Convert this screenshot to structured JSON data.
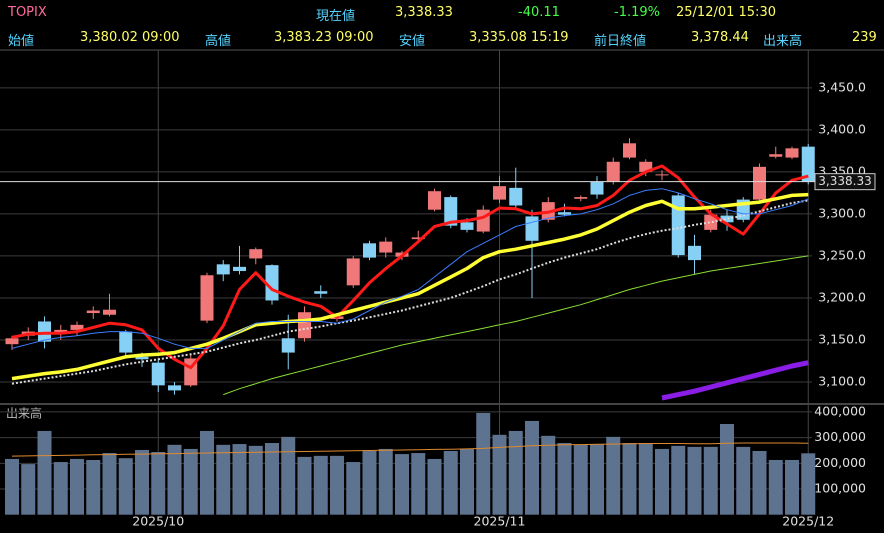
{
  "header": {
    "name": "TOPIX",
    "price_label": "現在値",
    "price": "3,338.33",
    "change": "-40.11",
    "change_pct": "-1.19%",
    "datetime": "25/12/01 15:30",
    "open_label": "始値",
    "open": "3,380.02 09:00",
    "high_label": "高値",
    "high": "3,383.23 09:00",
    "low_label": "安値",
    "low": "3,335.08 15:19",
    "prev_close_label": "前日終値",
    "prev_close": "3,378.44",
    "volume_label": "出来高",
    "volume": "239"
  },
  "chart_data": [
    {
      "type": "candlestick",
      "up_color": "#f07878",
      "down_color": "#86d0f5",
      "open": [
        3145,
        3155,
        3172,
        3157,
        3162,
        3182,
        3180,
        3160,
        3130,
        3123,
        3096,
        3096,
        3173,
        3240,
        3237,
        3247,
        3239,
        3152,
        3152,
        3208,
        3175,
        3215,
        3265,
        3254,
        3249,
        3270,
        3305,
        3320,
        3290,
        3279,
        3317,
        3331,
        3297,
        3293,
        3302,
        3318,
        3338,
        3338,
        3367,
        3350,
        3346,
        3322,
        3262,
        3281,
        3298,
        3317,
        3317,
        3368,
        3367,
        3380.02
      ],
      "high": [
        3155,
        3165,
        3178,
        3168,
        3172,
        3190,
        3205,
        3162,
        3135,
        3127,
        3100,
        3132,
        3230,
        3245,
        3262,
        3260,
        3240,
        3180,
        3190,
        3215,
        3180,
        3250,
        3268,
        3272,
        3256,
        3280,
        3330,
        3322,
        3295,
        3310,
        3345,
        3355,
        3305,
        3320,
        3312,
        3322,
        3345,
        3367,
        3390,
        3365,
        3352,
        3325,
        3275,
        3305,
        3305,
        3320,
        3360,
        3380,
        3380,
        3383.23
      ],
      "low": [
        3138,
        3150,
        3140,
        3150,
        3155,
        3175,
        3178,
        3130,
        3118,
        3088,
        3085,
        3094,
        3170,
        3220,
        3228,
        3240,
        3192,
        3115,
        3148,
        3200,
        3172,
        3212,
        3245,
        3248,
        3245,
        3265,
        3303,
        3283,
        3278,
        3277,
        3313,
        3305,
        3200,
        3290,
        3297,
        3315,
        3318,
        3335,
        3365,
        3345,
        3340,
        3248,
        3228,
        3278,
        3280,
        3290,
        3315,
        3366,
        3365,
        3335.08
      ],
      "close": [
        3152,
        3160,
        3148,
        3162,
        3168,
        3185,
        3186,
        3135,
        3127,
        3096,
        3090,
        3128,
        3227,
        3228,
        3232,
        3258,
        3197,
        3135,
        3183,
        3205,
        3178,
        3247,
        3248,
        3267,
        3254,
        3272,
        3327,
        3286,
        3281,
        3305,
        3333,
        3310,
        3268,
        3314,
        3299,
        3320,
        3323,
        3362,
        3384,
        3362,
        3347,
        3251,
        3245,
        3299,
        3290,
        3293,
        3356,
        3371,
        3378,
        3338.33
      ],
      "lines": [
        {
          "color": "#ff1a1a",
          "width": 3,
          "values": [
            3153,
            3157,
            3158,
            3158,
            3160,
            3165,
            3170,
            3168,
            3162,
            3140,
            3127,
            3117,
            3140,
            3167,
            3210,
            3230,
            3210,
            3202,
            3195,
            3190,
            3177,
            3197,
            3218,
            3235,
            3250,
            3267,
            3285,
            3290,
            3292,
            3296,
            3307,
            3306,
            3300,
            3302,
            3307,
            3306,
            3310,
            3322,
            3340,
            3350,
            3357,
            3343,
            3320,
            3300,
            3288,
            3276,
            3300,
            3325,
            3340,
            3345
          ]
        },
        {
          "color": "#ffff33",
          "width": 3.5,
          "values": [
            3104,
            3107,
            3110,
            3112,
            3115,
            3120,
            3125,
            3130,
            3132,
            3133,
            3135,
            3140,
            3145,
            3152,
            3160,
            3168,
            3170,
            3172,
            3173,
            3175,
            3180,
            3185,
            3190,
            3195,
            3200,
            3205,
            3215,
            3225,
            3235,
            3248,
            3255,
            3258,
            3262,
            3266,
            3270,
            3275,
            3282,
            3292,
            3302,
            3310,
            3315,
            3306,
            3306,
            3308,
            3310,
            3312,
            3314,
            3318,
            3322,
            3323
          ]
        },
        {
          "color": "#dddddd",
          "width": 2,
          "dash": "2 2",
          "values": [
            3098,
            3101,
            3104,
            3107,
            3110,
            3113,
            3117,
            3121,
            3124,
            3127,
            3130,
            3133,
            3136,
            3141,
            3146,
            3150,
            3155,
            3160,
            3163,
            3166,
            3170,
            3173,
            3177,
            3181,
            3185,
            3190,
            3195,
            3200,
            3207,
            3214,
            3222,
            3228,
            3235,
            3242,
            3248,
            3253,
            3258,
            3265,
            3271,
            3276,
            3280,
            3283,
            3287,
            3290,
            3294,
            3298,
            3303,
            3308,
            3313,
            3316
          ]
        },
        {
          "color": "#3b7dff",
          "width": 1,
          "values": [
            3140,
            3145,
            3150,
            3153,
            3155,
            3158,
            3160,
            3160,
            3158,
            3152,
            3145,
            3140,
            3140,
            3150,
            3160,
            3170,
            3172,
            3172,
            3172,
            3172,
            3170,
            3175,
            3185,
            3195,
            3202,
            3210,
            3225,
            3240,
            3255,
            3265,
            3275,
            3285,
            3290,
            3295,
            3298,
            3300,
            3305,
            3312,
            3322,
            3328,
            3330,
            3325,
            3318,
            3312,
            3305,
            3300,
            3300,
            3305,
            3310,
            3318
          ]
        },
        {
          "color": "#88dd33",
          "width": 1,
          "values": [
            null,
            null,
            null,
            null,
            null,
            null,
            null,
            null,
            null,
            null,
            null,
            null,
            null,
            3085,
            3092,
            3098,
            3104,
            3109,
            3114,
            3119,
            3124,
            3129,
            3134,
            3139,
            3144,
            3148,
            3152,
            3156,
            3160,
            3164,
            3168,
            3172,
            3177,
            3182,
            3187,
            3192,
            3198,
            3204,
            3210,
            3215,
            3220,
            3224,
            3228,
            3232,
            3235,
            3238,
            3241,
            3244,
            3247,
            3250
          ]
        },
        {
          "color": "#8a1ee6",
          "width": 5,
          "values": [
            null,
            null,
            null,
            null,
            null,
            null,
            null,
            null,
            null,
            null,
            null,
            null,
            null,
            null,
            null,
            null,
            null,
            null,
            null,
            null,
            null,
            null,
            null,
            null,
            null,
            null,
            null,
            null,
            null,
            null,
            null,
            null,
            null,
            null,
            null,
            null,
            null,
            null,
            null,
            null,
            3081,
            3085,
            3089,
            3094,
            3099,
            3104,
            3109,
            3114,
            3119,
            3123
          ]
        }
      ],
      "current": {
        "value": 3338.33,
        "label": "3,338.33"
      },
      "ylim": [
        3075,
        3495
      ],
      "yticks": [
        {
          "value": 3100,
          "label": "3,100.0"
        },
        {
          "value": 3150,
          "label": "3,150.0"
        },
        {
          "value": 3200,
          "label": "3,200.0"
        },
        {
          "value": 3250,
          "label": "3,250.0"
        },
        {
          "value": 3300,
          "label": "3,300.0"
        },
        {
          "value": 3350,
          "label": "3,350.0"
        },
        {
          "value": 3400,
          "label": "3,400.0"
        },
        {
          "value": 3450,
          "label": "3,450.0"
        }
      ],
      "grid": true
    },
    {
      "type": "bar",
      "title": "出来高",
      "color": "#5d7390",
      "categories": [
        null,
        null,
        null,
        null,
        null,
        null,
        null,
        null,
        null,
        "2025/10",
        null,
        null,
        null,
        null,
        null,
        null,
        null,
        null,
        null,
        null,
        null,
        null,
        null,
        null,
        null,
        null,
        null,
        null,
        null,
        null,
        "2025/11",
        null,
        null,
        null,
        null,
        null,
        null,
        null,
        null,
        null,
        null,
        null,
        null,
        null,
        null,
        null,
        null,
        null,
        null,
        "2025/12"
      ],
      "values": [
        217000,
        197000,
        326000,
        205000,
        217000,
        213000,
        240000,
        220000,
        252000,
        244000,
        272000,
        256000,
        326000,
        272000,
        275000,
        268000,
        279000,
        303000,
        225000,
        229000,
        229000,
        205000,
        248000,
        256000,
        236000,
        240000,
        217000,
        248000,
        256000,
        396000,
        311000,
        326000,
        365000,
        307000,
        279000,
        272000,
        275000,
        303000,
        279000,
        279000,
        256000,
        268000,
        264000,
        264000,
        353000,
        264000,
        248000,
        213000,
        213000,
        239000
      ],
      "lines": [
        {
          "color": "#e08a30",
          "width": 1,
          "values": [
            228000,
            229000,
            230000,
            231000,
            232000,
            233000,
            234000,
            235000,
            236000,
            237000,
            238000,
            239000,
            240000,
            241000,
            242000,
            243000,
            244000,
            245000,
            246000,
            247000,
            248000,
            249000,
            250000,
            251000,
            252000,
            253000,
            254000,
            255000,
            256000,
            258000,
            262000,
            265000,
            268000,
            270000,
            272000,
            273000,
            274000,
            275000,
            276000,
            277000,
            277000,
            277000,
            276000,
            276000,
            278000,
            279000,
            279000,
            279000,
            279000,
            278000
          ]
        }
      ],
      "ylim": [
        0,
        427000
      ],
      "yticks": [
        {
          "value": 100000,
          "label": "100,000"
        },
        {
          "value": 200000,
          "label": "200,000"
        },
        {
          "value": 300000,
          "label": "300,000"
        },
        {
          "value": 400000,
          "label": "400,000"
        }
      ],
      "grid": true
    }
  ]
}
